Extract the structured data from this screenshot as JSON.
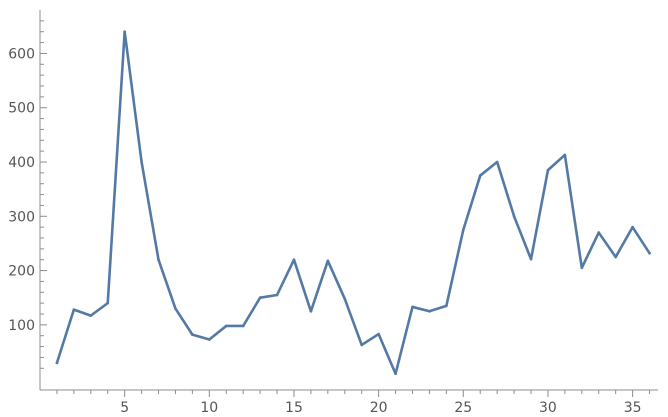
{
  "chart_data": {
    "type": "line",
    "title": "",
    "xlabel": "",
    "ylabel": "",
    "xlim": [
      0,
      36.5
    ],
    "ylim": [
      -20,
      680
    ],
    "x_ticks_major": [
      5,
      10,
      15,
      20,
      25,
      30,
      35
    ],
    "y_ticks_major": [
      100,
      200,
      300,
      400,
      500,
      600
    ],
    "x_tick_labels": [
      "5",
      "10",
      "15",
      "20",
      "25",
      "30",
      "35"
    ],
    "y_tick_labels": [
      "100",
      "200",
      "300",
      "400",
      "500",
      "600"
    ],
    "grid": false,
    "legend": "none",
    "colors": {
      "line": "#5479a5",
      "axis": "#8c8c8c",
      "tick_label": "#555555"
    },
    "series": [
      {
        "x": [
          1,
          2,
          3,
          4,
          5,
          6,
          7,
          8,
          9,
          10,
          11,
          12,
          13,
          14,
          15,
          16,
          17,
          18,
          19,
          20,
          21,
          22,
          23,
          24,
          25,
          26,
          27,
          28,
          29,
          30,
          31,
          32,
          33,
          34,
          35,
          36
        ],
        "values": [
          30,
          128,
          117,
          140,
          640,
          400,
          220,
          130,
          82,
          73,
          98,
          98,
          150,
          155,
          220,
          125,
          218,
          148,
          63,
          83,
          10,
          133,
          125,
          135,
          275,
          375,
          400,
          300,
          221,
          385,
          413,
          205,
          270,
          225,
          280,
          232
        ]
      }
    ]
  }
}
